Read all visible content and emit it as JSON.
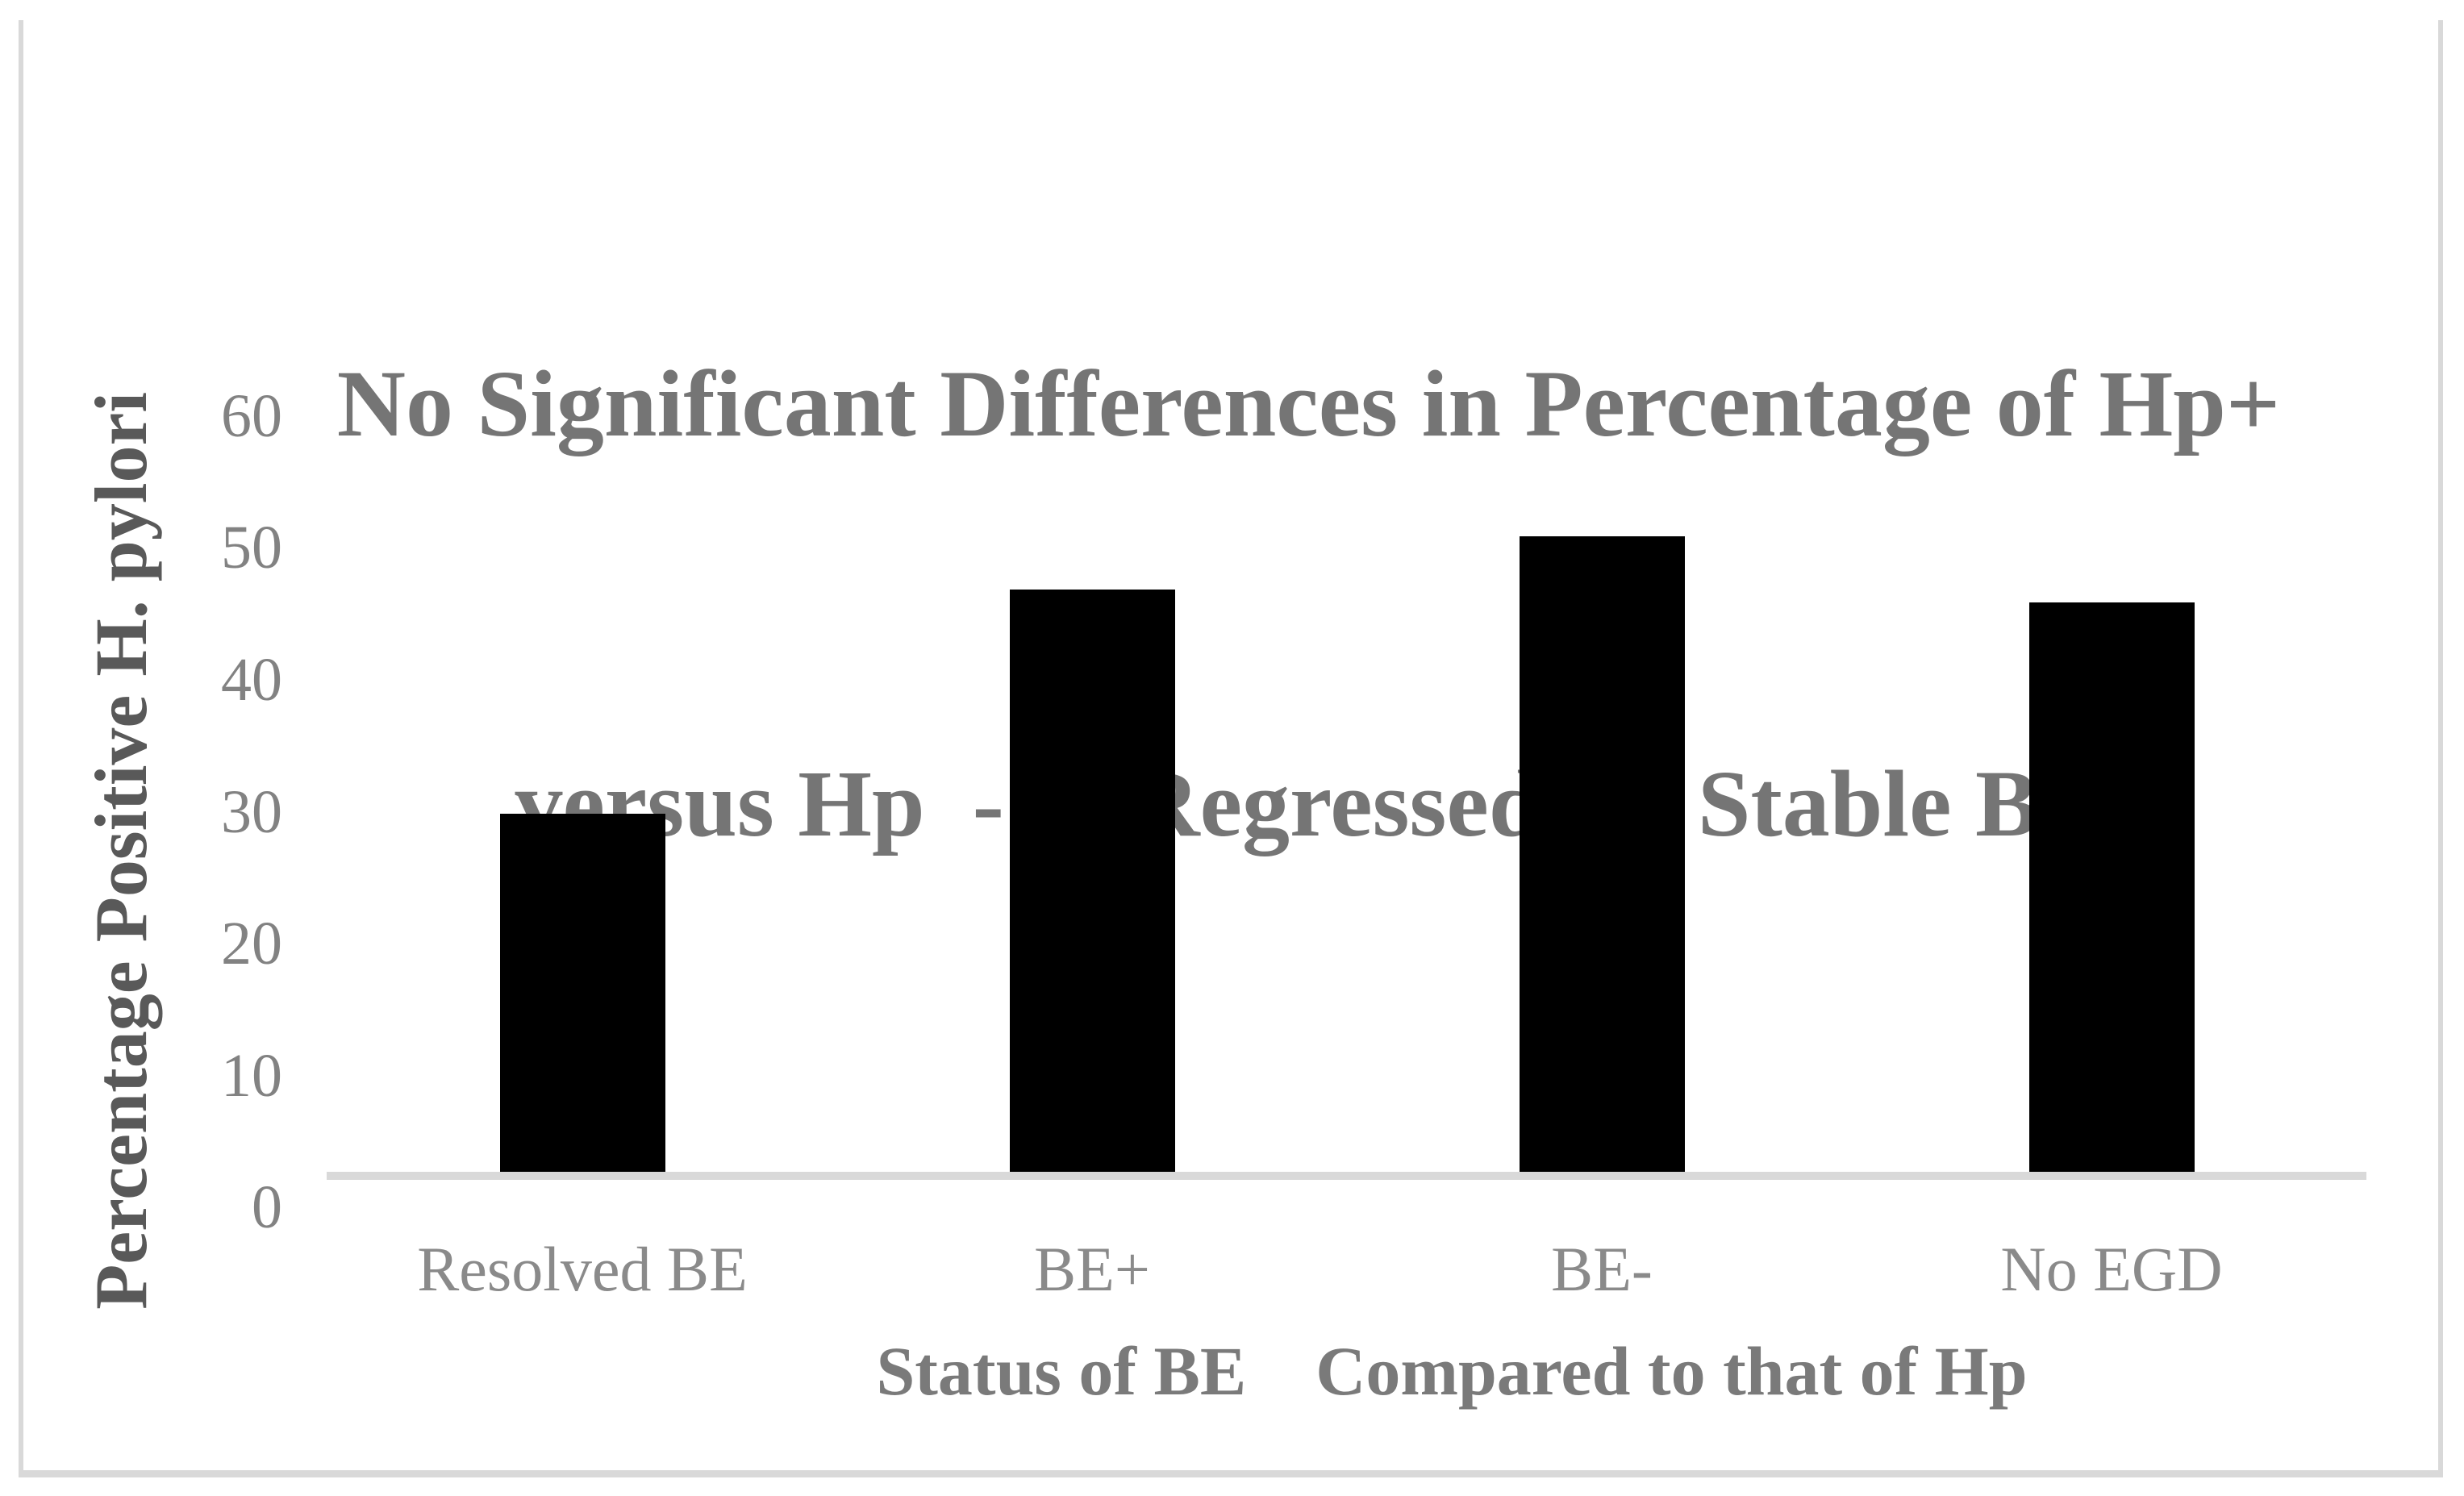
{
  "chart_data": {
    "type": "bar",
    "title": "No Significant Differences in Percentage of Hp+ versus Hp - in Regressed vs. Stable BE",
    "title_lines": [
      "No Significant Differences in Percentage of Hp+",
      "versus Hp  - in Regressed vs. Stable BE"
    ],
    "categories": [
      "Resolved BE",
      "BE+",
      "BE-",
      "No EGD"
    ],
    "values": [
      30,
      47,
      51,
      46
    ],
    "xlabel": "Status of BE    Compared to that of Hp",
    "ylabel": "Percentage Positive H. pylori",
    "ylim": [
      0,
      60
    ],
    "yticks": [
      0,
      10,
      20,
      30,
      40,
      50,
      60
    ],
    "grid": false,
    "legend_position": "none",
    "colors": {
      "bar": "#000000",
      "axis_line": "#d9d9d9",
      "frame_border": "#d9d9d9",
      "title_text": "#757575",
      "y_axis_title_text": "#595959",
      "x_axis_title_text": "#7a7a7a",
      "tick_label_text": "#828282"
    }
  }
}
